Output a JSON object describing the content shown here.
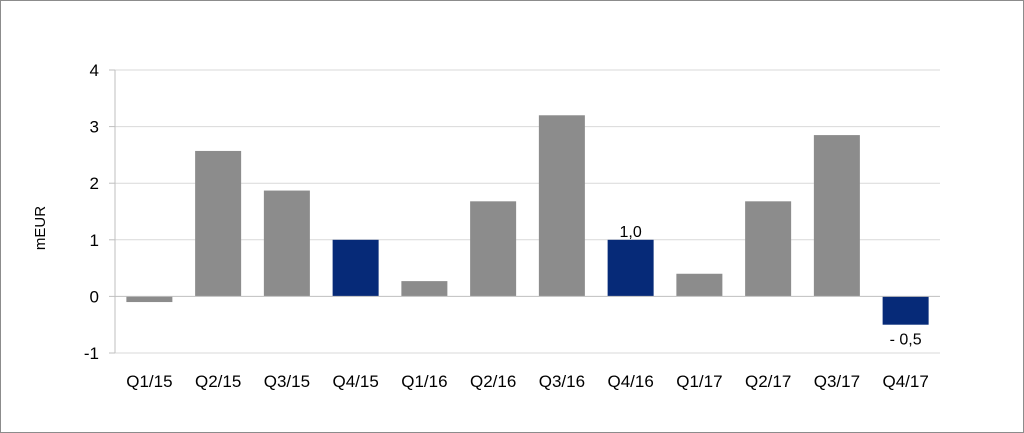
{
  "chart_data": {
    "type": "bar",
    "title": "",
    "xlabel": "",
    "ylabel": "mEUR",
    "ylim": [
      -1,
      4
    ],
    "yticks": [
      -1,
      0,
      1,
      2,
      3,
      4
    ],
    "grid": true,
    "categories": [
      "Q1/15",
      "Q2/15",
      "Q3/15",
      "Q4/15",
      "Q1/16",
      "Q2/16",
      "Q3/16",
      "Q4/16",
      "Q1/17",
      "Q2/17",
      "Q3/17",
      "Q4/17"
    ],
    "values": [
      -0.1,
      2.57,
      1.87,
      1.0,
      0.27,
      1.68,
      3.2,
      1.0,
      0.4,
      1.68,
      2.85,
      -0.5
    ],
    "colors": {
      "default": "#8c8c8c",
      "highlight": "#062a78",
      "grid": "#d9d9d9",
      "axis": "#bfbfbf"
    },
    "highlight_categories": [
      "Q4/15",
      "Q4/16",
      "Q4/17"
    ],
    "data_labels": [
      {
        "category": "Q4/16",
        "text": "1,0",
        "position": "above"
      },
      {
        "category": "Q4/17",
        "text": "- 0,5",
        "position": "below"
      }
    ]
  }
}
